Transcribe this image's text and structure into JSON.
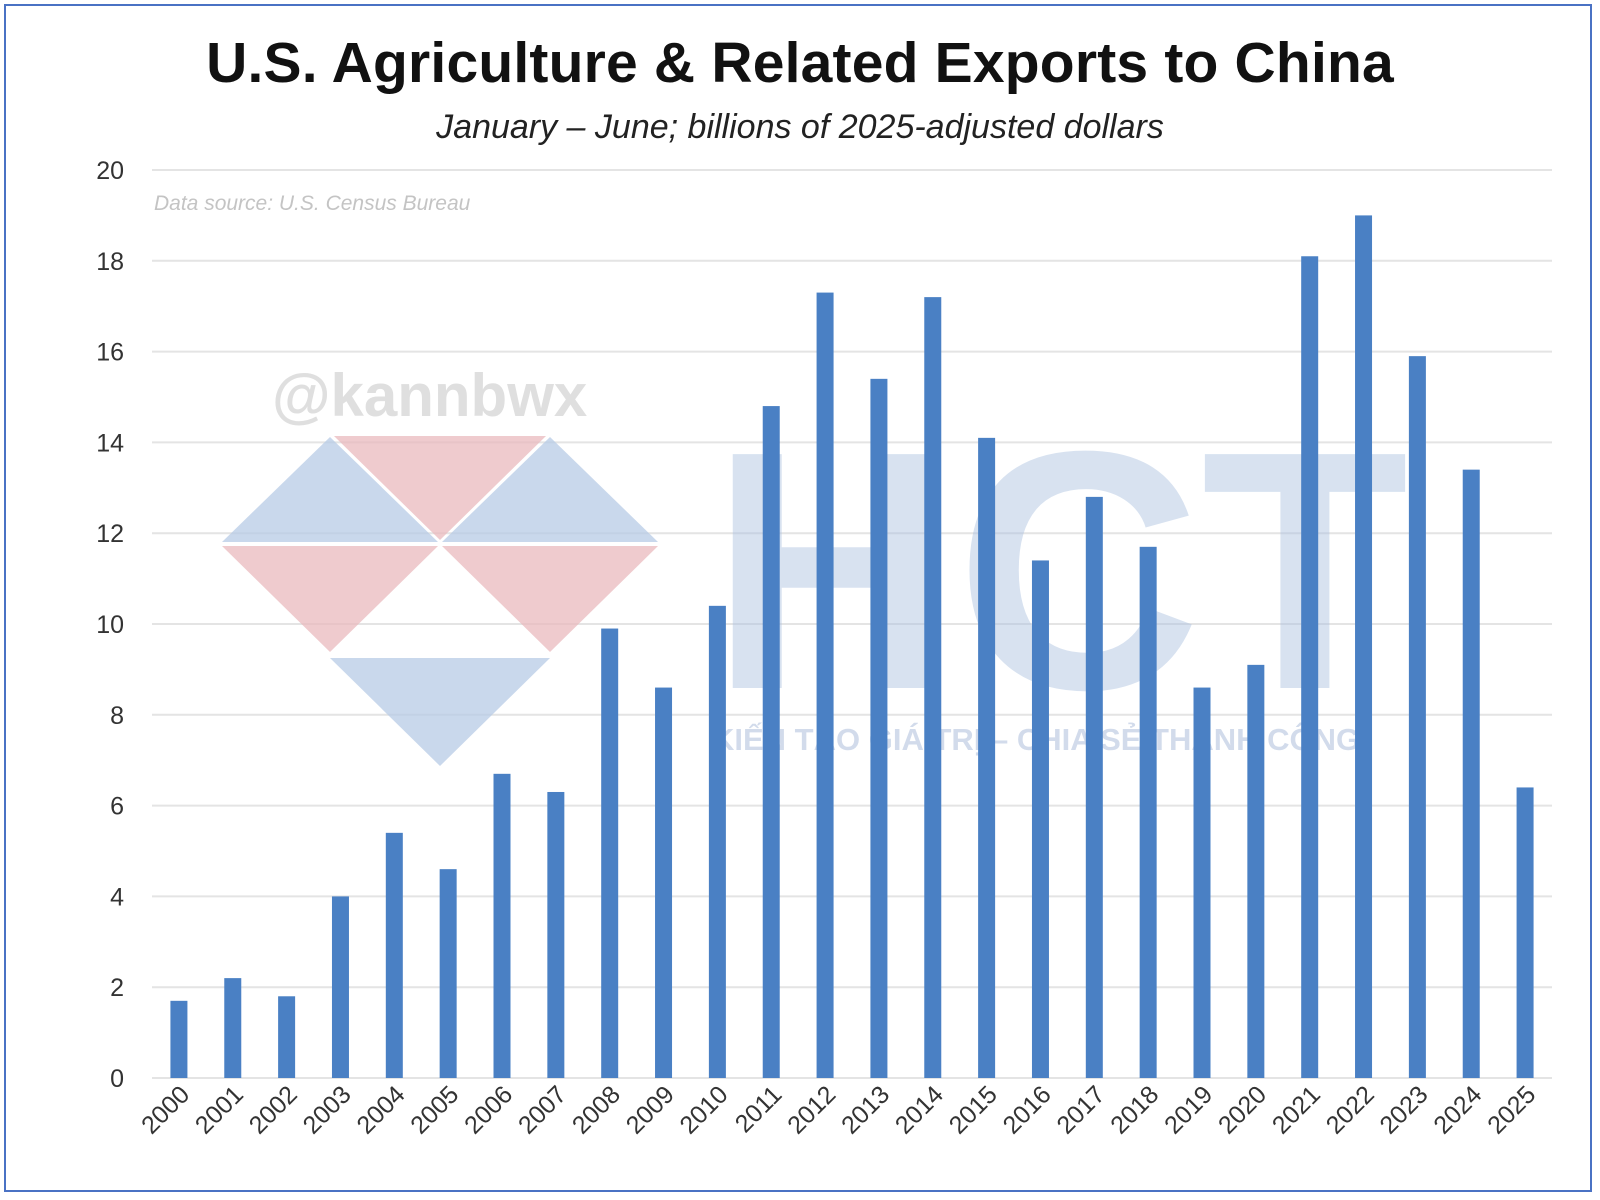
{
  "chart_data": {
    "type": "bar",
    "title": "U.S. Agriculture & Related Exports to China",
    "subtitle": "January – June; billions of 2025-adjusted dollars",
    "source_note": "Data source: U.S. Census Bureau",
    "categories": [
      "2000",
      "2001",
      "2002",
      "2003",
      "2004",
      "2005",
      "2006",
      "2007",
      "2008",
      "2009",
      "2010",
      "2011",
      "2012",
      "2013",
      "2014",
      "2015",
      "2016",
      "2017",
      "2018",
      "2019",
      "2020",
      "2021",
      "2022",
      "2023",
      "2024",
      "2025"
    ],
    "values": [
      1.7,
      2.2,
      1.8,
      4.0,
      5.4,
      4.6,
      6.7,
      6.3,
      9.9,
      8.6,
      10.4,
      14.8,
      17.3,
      15.4,
      17.2,
      14.1,
      11.4,
      12.8,
      11.7,
      8.6,
      9.1,
      18.1,
      19.0,
      15.9,
      13.4,
      6.4
    ],
    "ylim": [
      0,
      20
    ],
    "yticks": [
      0,
      2,
      4,
      6,
      8,
      10,
      12,
      14,
      16,
      18,
      20
    ],
    "grid": true,
    "bar_color": "#4a80c4",
    "grid_color": "#e4e4e4"
  },
  "watermark": {
    "handle": "@kannbwx",
    "logo_letters": "HCT",
    "slogan": "KIẾN TẠO GIÁ TRỊ – CHIA SẺ THÀNH CÔNG",
    "logo_colors": {
      "blue": "#b7cbe6",
      "red": "#e9b9bd"
    }
  }
}
